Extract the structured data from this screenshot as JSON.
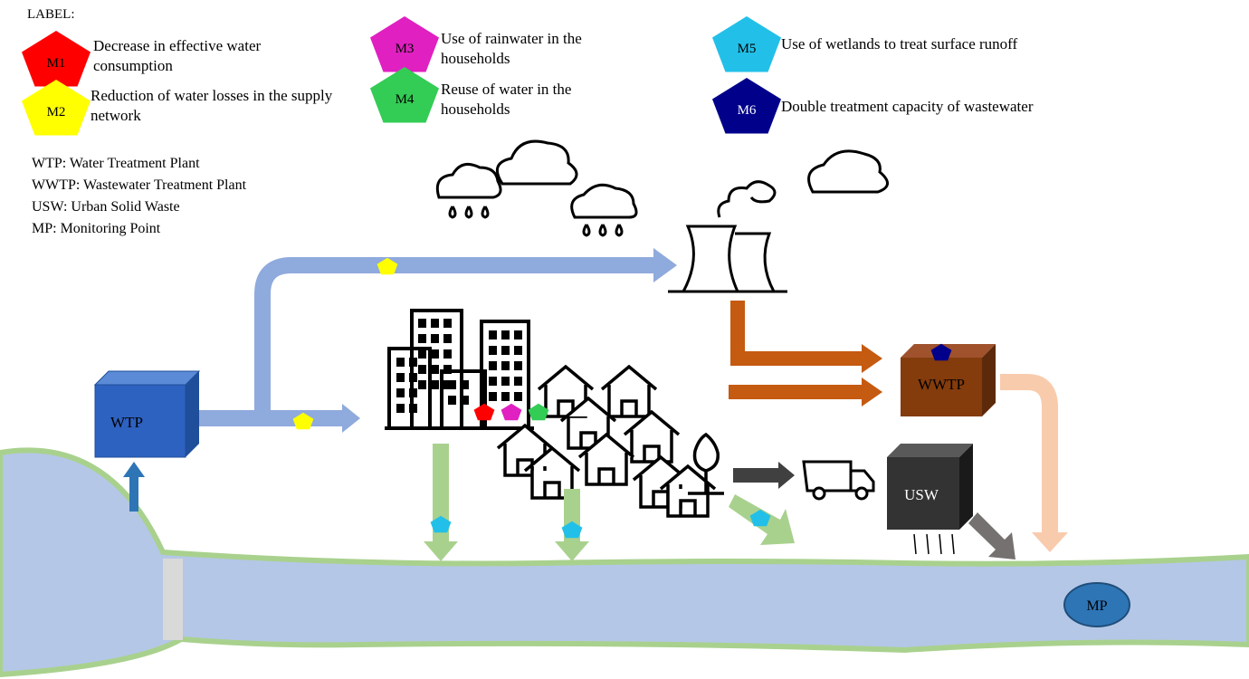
{
  "legend": {
    "title": "LABEL:",
    "items": [
      {
        "code": "M1",
        "text": "Decrease in effective water consumption"
      },
      {
        "code": "M2",
        "text": "Reduction of water losses in the supply network"
      },
      {
        "code": "M3",
        "text": "Use of rainwater in the households"
      },
      {
        "code": "M4",
        "text": "Reuse of water in the households"
      },
      {
        "code": "M5",
        "text": "Use of wetlands to treat surface runoff"
      },
      {
        "code": "M6",
        "text": "Double treatment capacity of wastewater"
      }
    ]
  },
  "abbreviations": [
    "WTP: Water Treatment Plant",
    "WWTP: Wastewater Treatment Plant",
    "USW: Urban Solid Waste",
    "MP: Monitoring Point"
  ],
  "nodes": {
    "wtp": "WTP",
    "wwtp": "WWTP",
    "usw": "USW",
    "mp": "MP"
  }
}
